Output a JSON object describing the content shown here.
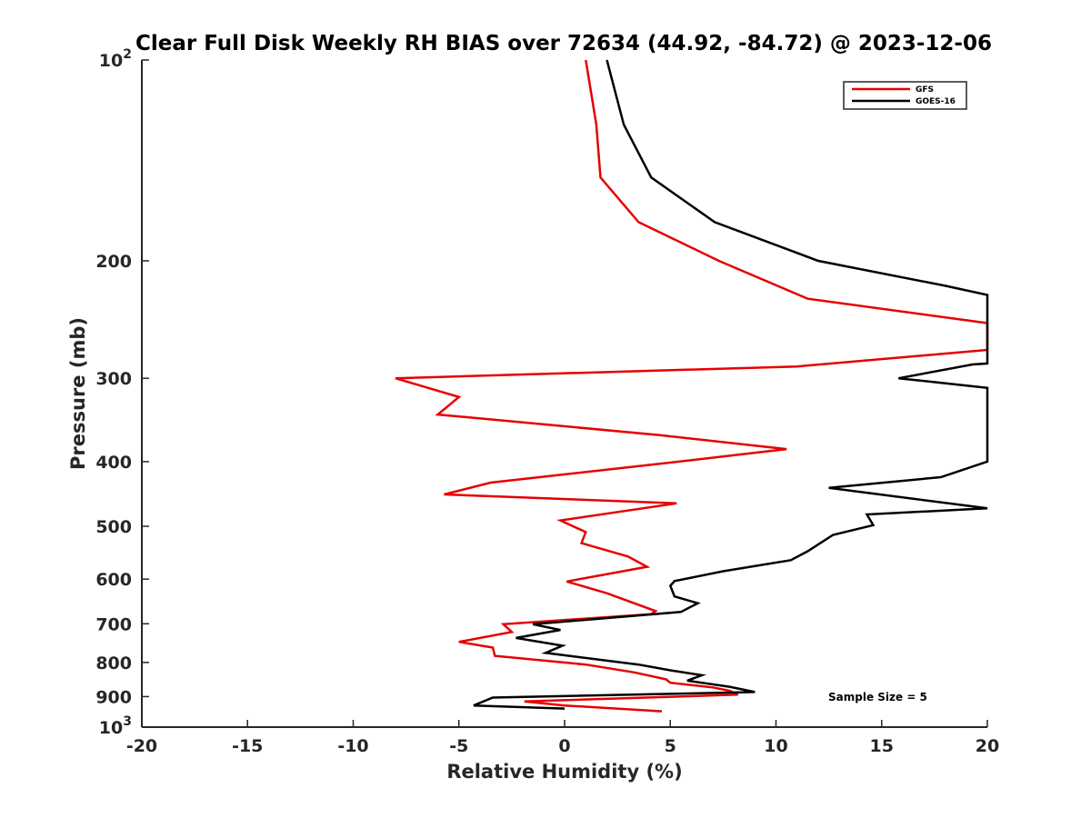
{
  "chart_data": {
    "type": "line",
    "title": "Clear Full Disk Weekly RH BIAS over 72634 (44.92, -84.72) @ 2023-12-06",
    "xlabel": "Relative Humidity (%)",
    "ylabel": "Pressure (mb)",
    "xlim": [
      -20,
      20
    ],
    "ylim": [
      100,
      1000
    ],
    "yscale": "log",
    "yreversed": true,
    "x_ticks": [
      -20,
      -15,
      -10,
      -5,
      0,
      5,
      10,
      15,
      20
    ],
    "x_tick_labels": [
      "-20",
      "-15",
      "-10",
      "-5",
      "0",
      "5",
      "10",
      "15",
      "20"
    ],
    "y_ticks": [
      100,
      200,
      300,
      400,
      500,
      600,
      700,
      800,
      900,
      1000
    ],
    "y_tick_labels": [
      {
        "base": "10",
        "exp": "2"
      },
      {
        "base": "200"
      },
      {
        "base": "300"
      },
      {
        "base": "400"
      },
      {
        "base": "500"
      },
      {
        "base": "600"
      },
      {
        "base": "700"
      },
      {
        "base": "800"
      },
      {
        "base": "900"
      },
      {
        "base": "10",
        "exp": "3"
      }
    ],
    "legend_position": "top-right",
    "annotation": "Sample Size = 5",
    "series": [
      {
        "name": "GFS",
        "color": "#e60000",
        "points": [
          [
            1.0,
            100
          ],
          [
            1.5,
            125
          ],
          [
            1.7,
            150
          ],
          [
            3.5,
            175
          ],
          [
            7.3,
            200
          ],
          [
            11.5,
            228
          ],
          [
            20,
            248
          ],
          [
            20,
            272
          ],
          [
            11,
            288
          ],
          [
            -8.0,
            300
          ],
          [
            -5.0,
            320
          ],
          [
            -6.0,
            340
          ],
          [
            4.5,
            365
          ],
          [
            10.5,
            383
          ],
          [
            4.5,
            403
          ],
          [
            -3.5,
            430
          ],
          [
            -5.7,
            448
          ],
          [
            5.3,
            462
          ],
          [
            -0.2,
            490
          ],
          [
            1.0,
            510
          ],
          [
            0.8,
            530
          ],
          [
            3.0,
            555
          ],
          [
            3.9,
            575
          ],
          [
            0.1,
            605
          ],
          [
            2.0,
            630
          ],
          [
            4.3,
            670
          ],
          [
            4.1,
            677
          ],
          [
            -2.9,
            701
          ],
          [
            -2.5,
            720
          ],
          [
            -5.0,
            745
          ],
          [
            -3.4,
            760
          ],
          [
            -3.3,
            782
          ],
          [
            1.0,
            806
          ],
          [
            3.3,
            828
          ],
          [
            4.8,
            848
          ],
          [
            5.0,
            858
          ],
          [
            7.0,
            872
          ],
          [
            7.8,
            882
          ],
          [
            8.2,
            894
          ],
          [
            -1.9,
            915
          ],
          [
            0.0,
            928
          ],
          [
            4.6,
            947
          ]
        ]
      },
      {
        "name": "GOES-16",
        "color": "#000000",
        "points": [
          [
            2.0,
            100
          ],
          [
            2.8,
            125
          ],
          [
            4.1,
            150
          ],
          [
            7.1,
            175
          ],
          [
            12.0,
            200
          ],
          [
            18.0,
            218
          ],
          [
            20,
            225
          ],
          [
            20,
            285
          ],
          [
            19.3,
            286
          ],
          [
            15.8,
            300
          ],
          [
            20,
            310
          ],
          [
            20,
            400
          ],
          [
            17.8,
            422
          ],
          [
            12.5,
            438
          ],
          [
            20,
            470
          ],
          [
            14.3,
            480
          ],
          [
            14.6,
            498
          ],
          [
            12.7,
            515
          ],
          [
            11.5,
            545
          ],
          [
            10.7,
            562
          ],
          [
            7.5,
            584
          ],
          [
            5.2,
            604
          ],
          [
            5.0,
            614
          ],
          [
            5.2,
            637
          ],
          [
            6.3,
            652
          ],
          [
            5.5,
            672
          ],
          [
            -1.5,
            701
          ],
          [
            -0.2,
            715
          ],
          [
            -2.3,
            735
          ],
          [
            -0.1,
            755
          ],
          [
            -0.9,
            774
          ],
          [
            3.5,
            806
          ],
          [
            5.0,
            822
          ],
          [
            6.5,
            836
          ],
          [
            5.8,
            852
          ],
          [
            7.8,
            870
          ],
          [
            9.0,
            886
          ],
          [
            -3.4,
            903
          ],
          [
            -4.3,
            928
          ],
          [
            0.0,
            938
          ]
        ]
      }
    ]
  }
}
